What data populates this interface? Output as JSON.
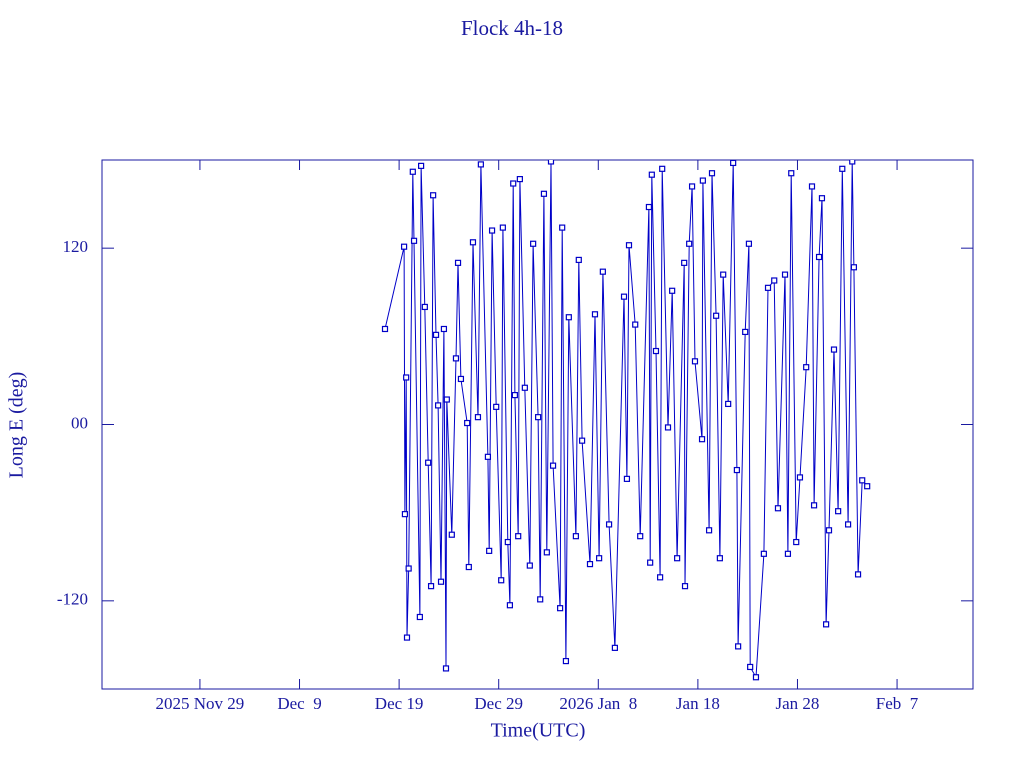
{
  "chart_data": {
    "type": "line",
    "title": "Flock 4h-18",
    "x_label": "Time(UTC)",
    "y_label": "Long E (deg)",
    "color": "#0000c8",
    "markers": true,
    "xlim": [
      "2025-11-19T04:00",
      "2026-02-14T15:00"
    ],
    "xticks": [
      {
        "value": "2025-11-29",
        "label": "2025 Nov 29"
      },
      {
        "value": "2025-12-09",
        "label": "Dec  9"
      },
      {
        "value": "2025-12-19",
        "label": "Dec 19"
      },
      {
        "value": "2025-12-29",
        "label": "Dec 29"
      },
      {
        "value": "2026-01-08",
        "label": "2026 Jan  8"
      },
      {
        "value": "2026-01-18",
        "label": "Jan 18"
      },
      {
        "value": "2026-01-28",
        "label": "Jan 28"
      },
      {
        "value": "2026-02-07",
        "label": "Feb  7"
      }
    ],
    "ylim": [
      -180,
      180
    ],
    "yticks": [
      -120,
      {
        "value": 0,
        "label": "00"
      },
      120
    ],
    "x": [
      "2025-12-17T14:00",
      "2025-12-19T12:00",
      "2025-12-19T14:00",
      "2025-12-19T17:00",
      "2025-12-19T19:00",
      "2025-12-19T23:00",
      "2025-12-20T09:00",
      "2025-12-20T12:00",
      "2025-12-21T02:00",
      "2025-12-21T05:00",
      "2025-12-21T14:00",
      "2025-12-21T22:00",
      "2025-12-22T05:00",
      "2025-12-22T10:00",
      "2025-12-22T17:00",
      "2025-12-22T22:00",
      "2025-12-23T05:00",
      "2025-12-23T12:00",
      "2025-12-23T17:00",
      "2025-12-23T19:00",
      "2025-12-24T07:00",
      "2025-12-24T17:00",
      "2025-12-24T22:00",
      "2025-12-25T05:00",
      "2025-12-25T20:00",
      "2025-12-26T00:00",
      "2025-12-26T10:00",
      "2025-12-26T22:00",
      "2025-12-27T05:00",
      "2025-12-27T22:00",
      "2025-12-28T01:00",
      "2025-12-28T08:00",
      "2025-12-28T18:00",
      "2025-12-29T06:00",
      "2025-12-29T10:00",
      "2025-12-29T22:00",
      "2025-12-30T03:00",
      "2025-12-30T11:00",
      "2025-12-30T15:00",
      "2025-12-30T23:00",
      "2025-12-31T03:00",
      "2025-12-31T15:00",
      "2026-01-01T03:00",
      "2026-01-01T11:00",
      "2026-01-01T23:00",
      "2026-01-02T04:00",
      "2026-01-02T13:00",
      "2026-01-02T20:00",
      "2026-01-03T06:00",
      "2026-01-03T11:00",
      "2026-01-04T04:00",
      "2026-01-04T09:00",
      "2026-01-04T18:00",
      "2026-01-05T01:00",
      "2026-01-05T18:00",
      "2026-01-06T01:00",
      "2026-01-06T09:00",
      "2026-01-07T04:00",
      "2026-01-07T16:00",
      "2026-01-08T02:00",
      "2026-01-08T11:00",
      "2026-01-09T02:00",
      "2026-01-09T16:00",
      "2026-01-10T14:00",
      "2026-01-10T21:00",
      "2026-01-11T02:00",
      "2026-01-11T17:00",
      "2026-01-12T05:00",
      "2026-01-13T02:00",
      "2026-01-13T05:00",
      "2026-01-13T09:00",
      "2026-01-13T19:00",
      "2026-01-14T05:00",
      "2026-01-14T10:00",
      "2026-01-15T00:00",
      "2026-01-15T10:00",
      "2026-01-15T22:00",
      "2026-01-16T15:00",
      "2026-01-16T17:00",
      "2026-01-17T03:00",
      "2026-01-17T10:00",
      "2026-01-17T17:00",
      "2026-01-18T10:00",
      "2026-01-18T12:00",
      "2026-01-19T03:00",
      "2026-01-19T10:00",
      "2026-01-19T20:00",
      "2026-01-20T05:00",
      "2026-01-20T13:00",
      "2026-01-21T01:00",
      "2026-01-21T13:00",
      "2026-01-21T22:00",
      "2026-01-22T01:00",
      "2026-01-22T18:00",
      "2026-01-23T03:00",
      "2026-01-23T06:00",
      "2026-01-23T20:00",
      "2026-01-24T15:00",
      "2026-01-25T01:00",
      "2026-01-25T16:00",
      "2026-01-26T01:00",
      "2026-01-26T18:00",
      "2026-01-27T01:00",
      "2026-01-27T09:00",
      "2026-01-27T21:00",
      "2026-01-28T06:00",
      "2026-01-28T21:00",
      "2026-01-29T11:00",
      "2026-01-29T16:00",
      "2026-01-30T04:00",
      "2026-01-30T11:00",
      "2026-01-30T21:00",
      "2026-01-31T04:00",
      "2026-01-31T16:00",
      "2026-02-01T02:00",
      "2026-02-01T12:00",
      "2026-02-02T02:00",
      "2026-02-02T12:00",
      "2026-02-02T16:00",
      "2026-02-03T02:00",
      "2026-02-03T12:00",
      "2026-02-04T00:00"
    ],
    "values": [
      65,
      121,
      -61,
      32,
      -145,
      -98,
      172,
      125,
      -131,
      176,
      80,
      -26,
      -110,
      156,
      61,
      13,
      -107,
      65,
      -166,
      17,
      -75,
      45,
      110,
      31,
      1,
      -97,
      124,
      5,
      177,
      -22,
      -86,
      132,
      12,
      -106,
      134,
      -80,
      -123,
      164,
      20,
      -76,
      167,
      25,
      -96,
      123,
      5,
      -119,
      157,
      -87,
      179,
      -28,
      -125,
      134,
      -161,
      73,
      -76,
      112,
      -11,
      -95,
      75,
      -91,
      104,
      -68,
      -152,
      87,
      -37,
      122,
      68,
      -76,
      148,
      -94,
      170,
      50,
      -104,
      174,
      -2,
      91,
      -91,
      110,
      -110,
      123,
      162,
      43,
      -10,
      166,
      -72,
      171,
      74,
      -91,
      102,
      14,
      178,
      -31,
      -151,
      63,
      123,
      -165,
      -172,
      -88,
      93,
      98,
      -57,
      102,
      -88,
      171,
      -80,
      -36,
      39,
      162,
      -55,
      114,
      154,
      -136,
      -72,
      51,
      -59,
      174,
      -68,
      179,
      107,
      -102,
      -38,
      -42
    ]
  }
}
